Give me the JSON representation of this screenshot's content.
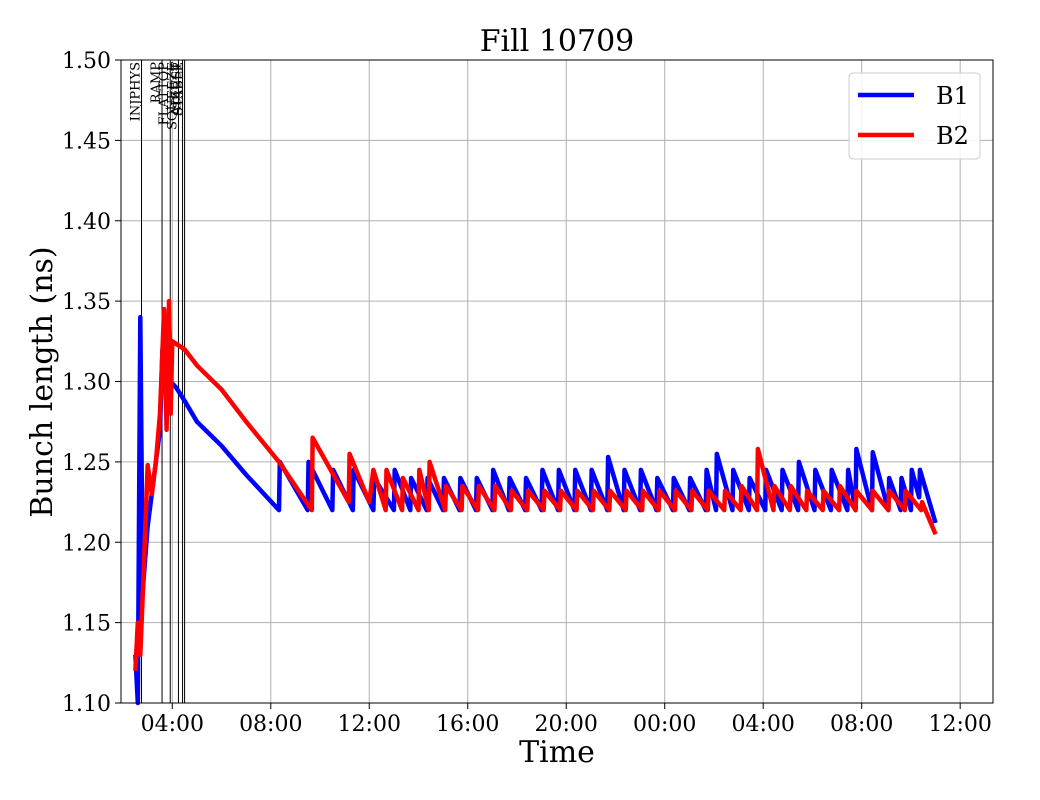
{
  "chart_data": {
    "type": "line",
    "title": "Fill 10709",
    "xlabel": "Time",
    "ylabel": "Bunch length (ns)",
    "xlim": [
      "2025-01-01T01:55",
      "2025-01-02T13:20"
    ],
    "ylim": [
      1.1,
      1.5
    ],
    "x_ticks": [
      {
        "t": "2025-01-01T04:00",
        "label": "04:00"
      },
      {
        "t": "2025-01-01T08:00",
        "label": "08:00"
      },
      {
        "t": "2025-01-01T12:00",
        "label": "12:00"
      },
      {
        "t": "2025-01-01T16:00",
        "label": "16:00"
      },
      {
        "t": "2025-01-01T20:00",
        "label": "20:00"
      },
      {
        "t": "2025-01-02T00:00",
        "label": "00:00"
      },
      {
        "t": "2025-01-02T04:00",
        "label": "04:00"
      },
      {
        "t": "2025-01-02T08:00",
        "label": "08:00"
      },
      {
        "t": "2025-01-02T12:00",
        "label": "12:00"
      }
    ],
    "y_ticks": [
      "1.10",
      "1.15",
      "1.20",
      "1.25",
      "1.30",
      "1.35",
      "1.40",
      "1.45",
      "1.50"
    ],
    "grid": true,
    "legend": "top-right",
    "events": [
      {
        "t": "2025-01-01T02:45",
        "label": "INJPHYS"
      },
      {
        "t": "2025-01-01T03:35",
        "label": "RAMP"
      },
      {
        "t": "2025-01-01T03:55",
        "label": "FLATTOP"
      },
      {
        "t": "2025-01-01T04:15",
        "label": "SQUEEZE"
      },
      {
        "t": "2025-01-01T04:25",
        "label": "ADJUST"
      },
      {
        "t": "2025-01-01T04:30",
        "label": "STABLE"
      }
    ],
    "series": [
      {
        "name": "B1",
        "color": "#0000ff",
        "points": [
          [
            "2025-01-01T02:30",
            1.13
          ],
          [
            "2025-01-01T02:36",
            1.1
          ],
          [
            "2025-01-01T02:42",
            1.34
          ],
          [
            "2025-01-01T02:48",
            1.17
          ],
          [
            "2025-01-01T03:00",
            1.21
          ],
          [
            "2025-01-01T03:15",
            1.24
          ],
          [
            "2025-01-01T03:30",
            1.27
          ],
          [
            "2025-01-01T03:36",
            1.32
          ],
          [
            "2025-01-01T03:45",
            1.29
          ],
          [
            "2025-01-01T03:52",
            1.34
          ],
          [
            "2025-01-01T03:56",
            1.3
          ],
          [
            "2025-01-01T04:10",
            1.296
          ],
          [
            "2025-01-01T04:30",
            1.288
          ],
          [
            "2025-01-01T05:00",
            1.275
          ],
          [
            "2025-01-01T06:00",
            1.26
          ],
          [
            "2025-01-01T07:00",
            1.242
          ],
          [
            "2025-01-01T08:20",
            1.22
          ],
          [
            "2025-01-01T08:22",
            1.25
          ],
          [
            "2025-01-01T09:30",
            1.22
          ],
          [
            "2025-01-01T09:32",
            1.25
          ],
          [
            "2025-01-01T10:30",
            1.22
          ],
          [
            "2025-01-01T10:32",
            1.245
          ],
          [
            "2025-01-01T11:20",
            1.22
          ],
          [
            "2025-01-01T11:22",
            1.245
          ],
          [
            "2025-01-01T12:10",
            1.22
          ],
          [
            "2025-01-01T12:12",
            1.24
          ],
          [
            "2025-01-01T13:00",
            1.22
          ],
          [
            "2025-01-01T13:02",
            1.245
          ],
          [
            "2025-01-01T13:40",
            1.22
          ],
          [
            "2025-01-01T13:42",
            1.24
          ],
          [
            "2025-01-01T14:20",
            1.22
          ],
          [
            "2025-01-01T14:22",
            1.24
          ],
          [
            "2025-01-01T15:00",
            1.22
          ],
          [
            "2025-01-01T15:02",
            1.24
          ],
          [
            "2025-01-01T15:40",
            1.22
          ],
          [
            "2025-01-01T15:42",
            1.24
          ],
          [
            "2025-01-01T16:20",
            1.22
          ],
          [
            "2025-01-01T16:22",
            1.24
          ],
          [
            "2025-01-01T17:00",
            1.22
          ],
          [
            "2025-01-01T17:02",
            1.245
          ],
          [
            "2025-01-01T17:40",
            1.22
          ],
          [
            "2025-01-01T17:42",
            1.24
          ],
          [
            "2025-01-01T18:20",
            1.22
          ],
          [
            "2025-01-01T18:22",
            1.24
          ],
          [
            "2025-01-01T19:00",
            1.22
          ],
          [
            "2025-01-01T19:02",
            1.245
          ],
          [
            "2025-01-01T19:40",
            1.22
          ],
          [
            "2025-01-01T19:42",
            1.245
          ],
          [
            "2025-01-01T20:20",
            1.22
          ],
          [
            "2025-01-01T20:22",
            1.245
          ],
          [
            "2025-01-01T21:00",
            1.22
          ],
          [
            "2025-01-01T21:02",
            1.245
          ],
          [
            "2025-01-01T21:40",
            1.22
          ],
          [
            "2025-01-01T21:42",
            1.253
          ],
          [
            "2025-01-01T22:20",
            1.22
          ],
          [
            "2025-01-01T22:22",
            1.245
          ],
          [
            "2025-01-01T23:00",
            1.22
          ],
          [
            "2025-01-01T23:02",
            1.245
          ],
          [
            "2025-01-01T23:40",
            1.22
          ],
          [
            "2025-01-01T23:42",
            1.24
          ],
          [
            "2025-01-02T00:20",
            1.22
          ],
          [
            "2025-01-02T00:22",
            1.24
          ],
          [
            "2025-01-02T01:00",
            1.22
          ],
          [
            "2025-01-02T01:02",
            1.24
          ],
          [
            "2025-01-02T01:40",
            1.22
          ],
          [
            "2025-01-02T01:42",
            1.245
          ],
          [
            "2025-01-02T02:05",
            1.22
          ],
          [
            "2025-01-02T02:07",
            1.255
          ],
          [
            "2025-01-02T02:45",
            1.22
          ],
          [
            "2025-01-02T02:47",
            1.245
          ],
          [
            "2025-01-02T03:25",
            1.22
          ],
          [
            "2025-01-02T03:27",
            1.24
          ],
          [
            "2025-01-02T04:05",
            1.22
          ],
          [
            "2025-01-02T04:07",
            1.245
          ],
          [
            "2025-01-02T04:45",
            1.22
          ],
          [
            "2025-01-02T04:47",
            1.245
          ],
          [
            "2025-01-02T05:25",
            1.22
          ],
          [
            "2025-01-02T05:27",
            1.25
          ],
          [
            "2025-01-02T06:05",
            1.22
          ],
          [
            "2025-01-02T06:07",
            1.245
          ],
          [
            "2025-01-02T06:45",
            1.22
          ],
          [
            "2025-01-02T06:47",
            1.245
          ],
          [
            "2025-01-02T07:25",
            1.22
          ],
          [
            "2025-01-02T07:27",
            1.245
          ],
          [
            "2025-01-02T07:45",
            1.22
          ],
          [
            "2025-01-02T07:47",
            1.258
          ],
          [
            "2025-01-02T08:25",
            1.22
          ],
          [
            "2025-01-02T08:27",
            1.256
          ],
          [
            "2025-01-02T09:05",
            1.22
          ],
          [
            "2025-01-02T09:07",
            1.24
          ],
          [
            "2025-01-02T09:35",
            1.22
          ],
          [
            "2025-01-02T09:37",
            1.24
          ],
          [
            "2025-01-02T10:00",
            1.22
          ],
          [
            "2025-01-02T10:02",
            1.245
          ],
          [
            "2025-01-02T10:20",
            1.228
          ],
          [
            "2025-01-02T10:22",
            1.245
          ],
          [
            "2025-01-02T11:00",
            1.212
          ]
        ]
      },
      {
        "name": "B2",
        "color": "#ff0000",
        "points": [
          [
            "2025-01-01T02:30",
            1.12
          ],
          [
            "2025-01-01T02:36",
            1.15
          ],
          [
            "2025-01-01T02:42",
            1.13
          ],
          [
            "2025-01-01T02:50",
            1.18
          ],
          [
            "2025-01-01T03:00",
            1.248
          ],
          [
            "2025-01-01T03:10",
            1.23
          ],
          [
            "2025-01-01T03:20",
            1.25
          ],
          [
            "2025-01-01T03:30",
            1.28
          ],
          [
            "2025-01-01T03:40",
            1.345
          ],
          [
            "2025-01-01T03:46",
            1.27
          ],
          [
            "2025-01-01T03:52",
            1.35
          ],
          [
            "2025-01-01T03:56",
            1.28
          ],
          [
            "2025-01-01T04:00",
            1.325
          ],
          [
            "2025-01-01T04:30",
            1.32
          ],
          [
            "2025-01-01T05:00",
            1.31
          ],
          [
            "2025-01-01T06:00",
            1.295
          ],
          [
            "2025-01-01T07:00",
            1.275
          ],
          [
            "2025-01-01T08:20",
            1.25
          ],
          [
            "2025-01-01T09:40",
            1.22
          ],
          [
            "2025-01-01T09:42",
            1.265
          ],
          [
            "2025-01-01T11:10",
            1.225
          ],
          [
            "2025-01-01T11:12",
            1.255
          ],
          [
            "2025-01-01T12:00",
            1.225
          ],
          [
            "2025-01-01T12:10",
            1.245
          ],
          [
            "2025-01-01T12:40",
            1.22
          ],
          [
            "2025-01-01T12:42",
            1.245
          ],
          [
            "2025-01-01T13:20",
            1.22
          ],
          [
            "2025-01-01T13:22",
            1.24
          ],
          [
            "2025-01-01T14:00",
            1.22
          ],
          [
            "2025-01-01T14:02",
            1.245
          ],
          [
            "2025-01-01T14:25",
            1.22
          ],
          [
            "2025-01-01T14:27",
            1.25
          ],
          [
            "2025-01-01T15:05",
            1.22
          ],
          [
            "2025-01-01T15:07",
            1.235
          ],
          [
            "2025-01-01T15:45",
            1.22
          ],
          [
            "2025-01-01T15:47",
            1.235
          ],
          [
            "2025-01-01T16:25",
            1.22
          ],
          [
            "2025-01-01T16:27",
            1.235
          ],
          [
            "2025-01-01T17:05",
            1.22
          ],
          [
            "2025-01-01T17:07",
            1.235
          ],
          [
            "2025-01-01T17:45",
            1.22
          ],
          [
            "2025-01-01T17:47",
            1.232
          ],
          [
            "2025-01-01T18:25",
            1.22
          ],
          [
            "2025-01-01T18:27",
            1.232
          ],
          [
            "2025-01-01T19:05",
            1.22
          ],
          [
            "2025-01-01T19:07",
            1.232
          ],
          [
            "2025-01-01T19:45",
            1.22
          ],
          [
            "2025-01-01T19:47",
            1.232
          ],
          [
            "2025-01-01T20:25",
            1.22
          ],
          [
            "2025-01-01T20:27",
            1.232
          ],
          [
            "2025-01-01T21:05",
            1.22
          ],
          [
            "2025-01-01T21:07",
            1.232
          ],
          [
            "2025-01-01T21:45",
            1.22
          ],
          [
            "2025-01-01T21:47",
            1.232
          ],
          [
            "2025-01-01T22:25",
            1.22
          ],
          [
            "2025-01-01T22:27",
            1.232
          ],
          [
            "2025-01-01T23:05",
            1.22
          ],
          [
            "2025-01-01T23:07",
            1.232
          ],
          [
            "2025-01-01T23:45",
            1.22
          ],
          [
            "2025-01-01T23:47",
            1.232
          ],
          [
            "2025-01-02T00:25",
            1.22
          ],
          [
            "2025-01-02T00:27",
            1.232
          ],
          [
            "2025-01-02T01:05",
            1.22
          ],
          [
            "2025-01-02T01:07",
            1.232
          ],
          [
            "2025-01-02T01:45",
            1.22
          ],
          [
            "2025-01-02T01:47",
            1.232
          ],
          [
            "2025-01-02T02:25",
            1.22
          ],
          [
            "2025-01-02T02:27",
            1.232
          ],
          [
            "2025-01-02T03:05",
            1.22
          ],
          [
            "2025-01-02T03:07",
            1.235
          ],
          [
            "2025-01-02T03:45",
            1.22
          ],
          [
            "2025-01-02T03:47",
            1.258
          ],
          [
            "2025-01-02T04:25",
            1.22
          ],
          [
            "2025-01-02T04:27",
            1.235
          ],
          [
            "2025-01-02T05:05",
            1.22
          ],
          [
            "2025-01-02T05:07",
            1.235
          ],
          [
            "2025-01-02T05:45",
            1.22
          ],
          [
            "2025-01-02T05:47",
            1.232
          ],
          [
            "2025-01-02T06:25",
            1.22
          ],
          [
            "2025-01-02T06:27",
            1.232
          ],
          [
            "2025-01-02T07:05",
            1.22
          ],
          [
            "2025-01-02T07:07",
            1.235
          ],
          [
            "2025-01-02T07:45",
            1.22
          ],
          [
            "2025-01-02T07:47",
            1.232
          ],
          [
            "2025-01-02T08:25",
            1.22
          ],
          [
            "2025-01-02T08:27",
            1.232
          ],
          [
            "2025-01-02T09:05",
            1.22
          ],
          [
            "2025-01-02T09:07",
            1.232
          ],
          [
            "2025-01-02T09:45",
            1.22
          ],
          [
            "2025-01-02T09:47",
            1.232
          ],
          [
            "2025-01-02T10:25",
            1.22
          ],
          [
            "2025-01-02T10:27",
            1.225
          ],
          [
            "2025-01-02T11:00",
            1.205
          ]
        ]
      }
    ]
  }
}
